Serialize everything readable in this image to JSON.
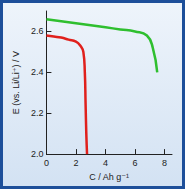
{
  "chart_data": {
    "type": "line",
    "xlabel": "C / Ah g⁻¹",
    "ylabel": "E (vs. Li/Li⁺) / V",
    "xlim": [
      0,
      8.5
    ],
    "xticks": [
      0,
      2,
      4,
      6,
      8
    ],
    "ylim": [
      2.0,
      2.7
    ],
    "yticks": [
      {
        "value": 2.0,
        "label": "2.0"
      },
      {
        "value": 2.2,
        "label": "2.2"
      },
      {
        "value": 2.4,
        "label": "2.4"
      },
      {
        "value": 2.6,
        "label": "2.6"
      }
    ],
    "grid": false,
    "series": [
      {
        "color": "#e0201c",
        "x": [
          0,
          0.5,
          1,
          1.5,
          2,
          2.3,
          2.5,
          2.6,
          2.65,
          2.7,
          2.75
        ],
        "values": [
          2.58,
          2.575,
          2.57,
          2.56,
          2.55,
          2.53,
          2.5,
          2.4,
          2.25,
          2.1,
          2.0
        ]
      },
      {
        "color": "#2fbf2f",
        "x": [
          0,
          1,
          2,
          3,
          4,
          5,
          6,
          6.8,
          7.2,
          7.5
        ],
        "values": [
          2.66,
          2.65,
          2.64,
          2.63,
          2.62,
          2.61,
          2.6,
          2.58,
          2.52,
          2.4
        ]
      }
    ]
  }
}
